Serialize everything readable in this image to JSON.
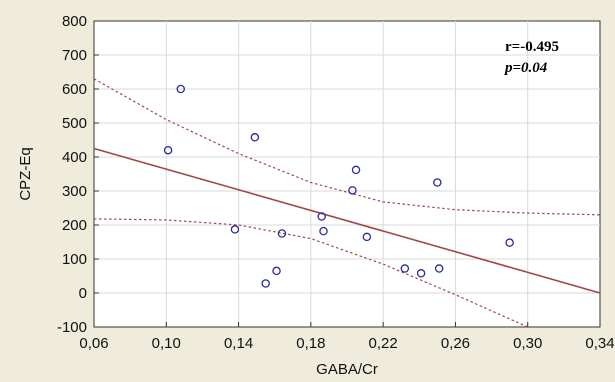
{
  "chart_data": {
    "type": "scatter",
    "title": "",
    "xlabel": "GABA/Cr",
    "ylabel": "CPZ-Eq",
    "xlim": [
      0.06,
      0.34
    ],
    "ylim": [
      -100,
      800
    ],
    "x_ticks": [
      "0,06",
      "0,10",
      "0,14",
      "0,18",
      "0,22",
      "0,26",
      "0,30",
      "0,34"
    ],
    "y_ticks": [
      "-100",
      "0",
      "100",
      "200",
      "300",
      "400",
      "500",
      "600",
      "700",
      "800"
    ],
    "grid": true,
    "points": [
      {
        "x": 0.101,
        "y": 420
      },
      {
        "x": 0.108,
        "y": 600
      },
      {
        "x": 0.138,
        "y": 187
      },
      {
        "x": 0.149,
        "y": 458
      },
      {
        "x": 0.155,
        "y": 28
      },
      {
        "x": 0.161,
        "y": 65
      },
      {
        "x": 0.164,
        "y": 175
      },
      {
        "x": 0.186,
        "y": 225
      },
      {
        "x": 0.187,
        "y": 182
      },
      {
        "x": 0.203,
        "y": 302
      },
      {
        "x": 0.205,
        "y": 362
      },
      {
        "x": 0.211,
        "y": 165
      },
      {
        "x": 0.232,
        "y": 72
      },
      {
        "x": 0.241,
        "y": 58
      },
      {
        "x": 0.25,
        "y": 325
      },
      {
        "x": 0.251,
        "y": 72
      },
      {
        "x": 0.29,
        "y": 148
      }
    ],
    "regression_line": {
      "x": [
        0.06,
        0.34
      ],
      "y": [
        425,
        0
      ]
    },
    "confidence_upper": {
      "x": [
        0.06,
        0.1,
        0.14,
        0.18,
        0.22,
        0.26,
        0.3,
        0.34
      ],
      "y": [
        630,
        510,
        410,
        325,
        268,
        245,
        235,
        230
      ]
    },
    "confidence_lower": {
      "x": [
        0.06,
        0.1,
        0.14,
        0.18,
        0.22,
        0.26,
        0.3
      ],
      "y": [
        218,
        215,
        200,
        160,
        85,
        -5,
        -100
      ]
    },
    "annotations": {
      "r": "r=-0.495",
      "p": "p=0.04"
    },
    "colors": {
      "background": "#efecdc",
      "plot_area": "#ffffff",
      "points": "#2a2aa0",
      "regression": "#a04848",
      "confidence": "#a04848",
      "grid": "#d9d9d9"
    }
  }
}
